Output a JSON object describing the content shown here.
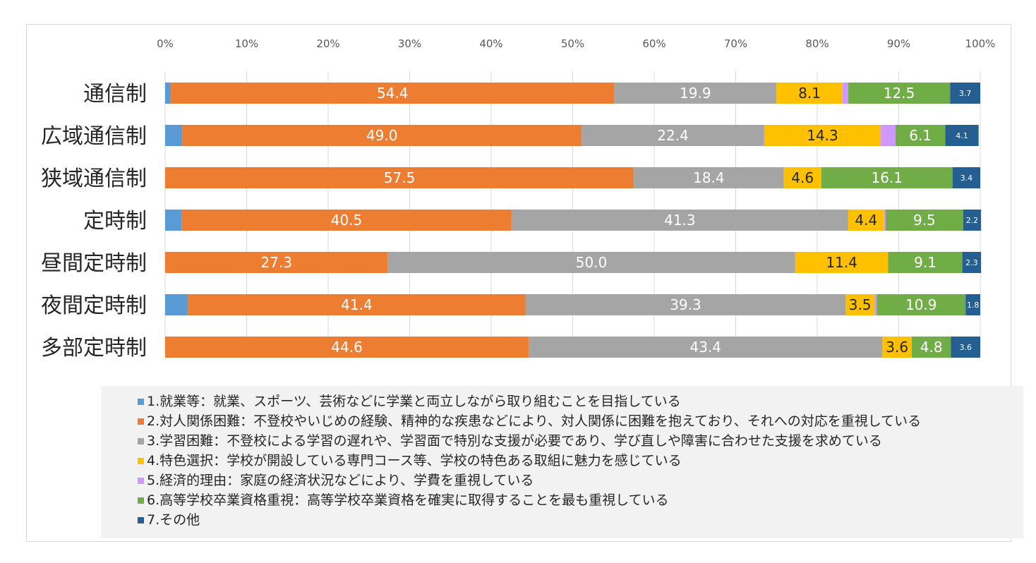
{
  "chart_data": {
    "type": "bar",
    "orientation": "horizontal",
    "stacked": true,
    "percent_stacked": true,
    "title": "",
    "xlim": [
      0,
      100
    ],
    "x_tick_labels": [
      "0%",
      "10%",
      "20%",
      "30%",
      "40%",
      "50%",
      "60%",
      "70%",
      "80%",
      "90%",
      "100%"
    ],
    "grid": true,
    "legend_position": "bottom",
    "categories": [
      "通信制",
      "広域通信制",
      "狭域通信制",
      "定時制",
      "昼間定時制",
      "夜間定時制",
      "多部定時制"
    ],
    "series": [
      {
        "name": "1.就業等：就業、スポーツ、芸術などに学業と両立しながら取り組むことを目指している",
        "color": "#5b9bd5",
        "values": [
          0.7,
          2.1,
          0.0,
          2.0,
          0.0,
          2.8,
          0.0
        ],
        "labels": [
          "",
          "",
          "",
          "",
          "",
          "",
          ""
        ]
      },
      {
        "name": "2.対人関係困難：不登校やいじめの経験、精神的な疾患などにより、対人関係に困難を抱えており、それへの対応を重視している",
        "color": "#ed7d31",
        "values": [
          54.4,
          49.0,
          57.5,
          40.5,
          27.3,
          41.4,
          44.6
        ],
        "labels": [
          "54.4",
          "49.0",
          "57.5",
          "40.5",
          "27.3",
          "41.4",
          "44.6"
        ]
      },
      {
        "name": "3.学習困難：不登校による学習の遅れや、学習面で特別な支援が必要であり、学び直しや障害に合わせた支援を求めている",
        "color": "#a5a5a5",
        "values": [
          19.9,
          22.4,
          18.4,
          41.3,
          50.0,
          39.3,
          43.4
        ],
        "labels": [
          "19.9",
          "22.4",
          "18.4",
          "41.3",
          "50.0",
          "39.3",
          "43.4"
        ]
      },
      {
        "name": "4.特色選択：学校が開設している専門コース等、学校の特色ある取組に魅力を感じている",
        "color": "#ffc000",
        "values": [
          8.1,
          14.3,
          4.6,
          4.4,
          11.4,
          3.5,
          3.6
        ],
        "labels": [
          "8.1",
          "14.3",
          "4.6",
          "4.4",
          "11.4",
          "3.5",
          "3.6"
        ]
      },
      {
        "name": "5.経済的理由：家庭の経済状況などにより、学費を重視している",
        "color": "#cc99ff",
        "values": [
          0.7,
          1.8,
          0.0,
          0.2,
          0.0,
          0.3,
          0.0
        ],
        "labels": [
          "",
          "",
          "",
          "",
          "",
          "",
          ""
        ]
      },
      {
        "name": "6.高等学校卒業資格重視：高等学校卒業資格を確実に取得することを最も重視している",
        "color": "#70ad47",
        "values": [
          12.5,
          6.1,
          16.1,
          9.5,
          9.1,
          10.9,
          4.8
        ],
        "labels": [
          "12.5",
          "6.1",
          "16.1",
          "9.5",
          "9.1",
          "10.9",
          "4.8"
        ]
      },
      {
        "name": "7.その他",
        "color": "#255e91",
        "values": [
          3.7,
          4.1,
          3.4,
          2.2,
          2.3,
          1.8,
          3.6
        ],
        "labels": [
          "3.7",
          "4.1",
          "3.4",
          "2.2",
          "2.3",
          "1.8",
          "3.6"
        ]
      }
    ]
  }
}
